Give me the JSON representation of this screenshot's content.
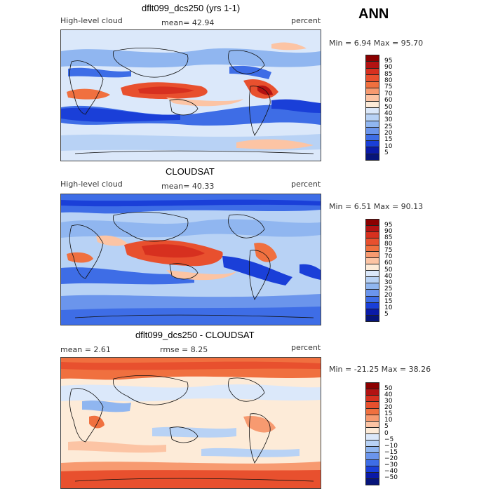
{
  "season": "ANN",
  "panels": [
    {
      "title": "dflt099_dcs250 (yrs 1-1)",
      "left_label": "High-level cloud",
      "center_label": "mean=  42.94",
      "right_label": "percent",
      "stats": "Min =   6.94 Max =  95.70",
      "colorbar": {
        "ticks": [
          "95",
          "90",
          "85",
          "80",
          "75",
          "70",
          "60",
          "50",
          "40",
          "30",
          "25",
          "20",
          "15",
          "10",
          "5"
        ],
        "colors": [
          "#8b0000",
          "#b31212",
          "#d7301f",
          "#e8502e",
          "#f0703f",
          "#f79a70",
          "#fcc4a4",
          "#fdebd8",
          "#dbe8fa",
          "#b8d2f5",
          "#90b6f0",
          "#6b95ec",
          "#3e6de6",
          "#1a3fd8",
          "#0a1aa8",
          "#06147a"
        ]
      }
    },
    {
      "title": "CLOUDSAT",
      "left_label": "High-level cloud",
      "center_label": "mean=  40.33",
      "right_label": "percent",
      "stats": "Min =   6.51 Max =  90.13",
      "colorbar": {
        "ticks": [
          "95",
          "90",
          "85",
          "80",
          "75",
          "70",
          "60",
          "50",
          "40",
          "30",
          "25",
          "20",
          "15",
          "10",
          "5"
        ],
        "colors": [
          "#8b0000",
          "#b31212",
          "#d7301f",
          "#e8502e",
          "#f0703f",
          "#f79a70",
          "#fcc4a4",
          "#fdebd8",
          "#dbe8fa",
          "#b8d2f5",
          "#90b6f0",
          "#6b95ec",
          "#3e6de6",
          "#1a3fd8",
          "#0a1aa8",
          "#06147a"
        ]
      }
    },
    {
      "title": "dflt099_dcs250 - CLOUDSAT",
      "left_label": "mean =    2.61",
      "center_label": "rmse =    8.25",
      "right_label": "percent",
      "stats": "Min = -21.25 Max =  38.26",
      "colorbar": {
        "ticks": [
          "50",
          "40",
          "30",
          "20",
          "15",
          "10",
          "5",
          "0",
          "−5",
          "−10",
          "−15",
          "−20",
          "−30",
          "−40",
          "−50"
        ],
        "colors": [
          "#8b0000",
          "#b31212",
          "#d7301f",
          "#e8502e",
          "#f0703f",
          "#f79a70",
          "#fcc4a4",
          "#fdebd8",
          "#dbe8fa",
          "#b8d2f5",
          "#90b6f0",
          "#6b95ec",
          "#3e6de6",
          "#1a3fd8",
          "#0a1aa8",
          "#06147a"
        ]
      }
    }
  ]
}
